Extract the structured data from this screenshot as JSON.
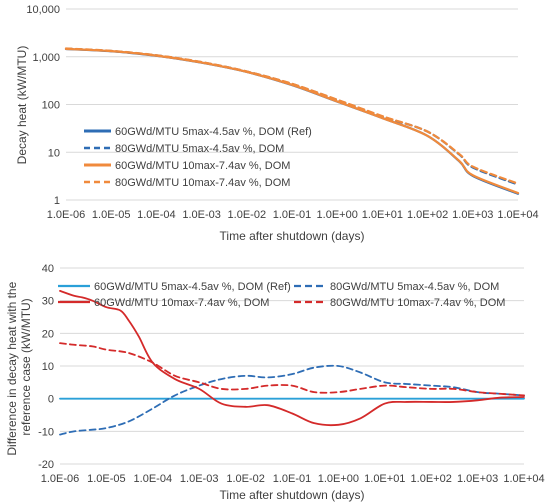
{
  "chart_data": [
    {
      "type": "line",
      "xlabel": "Time after shutdown (days)",
      "ylabel": "Decay heat (kW/MTU)",
      "xscale": "log",
      "yscale": "log",
      "xlim": [
        1e-06,
        10000.0
      ],
      "ylim": [
        1,
        10000
      ],
      "x_tick_labels": [
        "1.0E-06",
        "1.0E-05",
        "1.0E-04",
        "1.0E-03",
        "1.0E-02",
        "1.0E-01",
        "1.0E+00",
        "1.0E+01",
        "1.0E+02",
        "1.0E+03",
        "1.0E+04"
      ],
      "y_tick_labels": [
        "1",
        "10",
        "100",
        "1,000",
        "10,000"
      ],
      "grid": "horizontal",
      "legend_position": "bottom-left",
      "series": [
        {
          "name": "60GWd/MTU 5max-4.5av %, DOM (Ref)",
          "color": "#2e6db5",
          "dash": "solid",
          "x": [
            1e-06,
            1e-05,
            0.0001,
            0.001,
            0.01,
            0.1,
            1,
            10,
            100,
            500,
            1000,
            10000
          ],
          "y": [
            1450,
            1300,
            1050,
            750,
            480,
            255,
            115,
            52,
            22,
            6.5,
            3.2,
            1.35
          ]
        },
        {
          "name": "80GWd/MTU 5max-4.5av %, DOM",
          "color": "#2e6db5",
          "dash": "dashed",
          "x": [
            1e-06,
            1e-05,
            0.0001,
            0.001,
            0.01,
            0.1,
            1,
            10,
            100,
            500,
            1000,
            10000
          ],
          "y": [
            1480,
            1320,
            1070,
            770,
            490,
            270,
            125,
            56,
            27,
            9,
            4.8,
            2.1
          ]
        },
        {
          "name": "60GWd/MTU 10max-7.4av %, DOM",
          "color": "#f08a3c",
          "dash": "solid",
          "x": [
            1e-06,
            1e-05,
            0.0001,
            0.001,
            0.01,
            0.1,
            1,
            10,
            100,
            500,
            1000,
            10000
          ],
          "y": [
            1460,
            1310,
            1055,
            755,
            482,
            258,
            116,
            52,
            22,
            6.6,
            3.3,
            1.4
          ]
        },
        {
          "name": "80GWd/MTU 10max-7.4av %, DOM",
          "color": "#f08a3c",
          "dash": "dashed",
          "x": [
            1e-06,
            1e-05,
            0.0001,
            0.001,
            0.01,
            0.1,
            1,
            10,
            100,
            500,
            1000,
            10000
          ],
          "y": [
            1490,
            1330,
            1075,
            775,
            492,
            272,
            126,
            57,
            27,
            9.2,
            5,
            2.2
          ]
        }
      ]
    },
    {
      "type": "line",
      "xlabel": "Time after shutdown (days)",
      "ylabel": "Difference in decay heat with the reference case (kW/MTU)",
      "xscale": "log",
      "xlim": [
        1e-06,
        10000.0
      ],
      "ylim": [
        -20,
        40
      ],
      "x_tick_labels": [
        "1.0E-06",
        "1.0E-05",
        "1.0E-04",
        "1.0E-03",
        "1.0E-02",
        "1.0E-01",
        "1.0E+00",
        "1.0E+01",
        "1.0E+02",
        "1.0E+03",
        "1.0E+04"
      ],
      "y_tick_labels": [
        "-20",
        "-10",
        "0",
        "10",
        "20",
        "30",
        "40"
      ],
      "grid": "horizontal",
      "legend_position": "top",
      "series": [
        {
          "name": "60GWd/MTU 5max-4.5av %, DOM (Ref)",
          "color": "#2aa0d8",
          "dash": "solid",
          "x": [
            1e-06,
            10000.0
          ],
          "y": [
            0,
            0
          ]
        },
        {
          "name": "80GWd/MTU 5max-4.5av %, DOM",
          "color": "#2e6db5",
          "dash": "dashed",
          "x": [
            1e-06,
            2e-06,
            5e-06,
            1e-05,
            3e-05,
            0.0001,
            0.0003,
            0.001,
            0.003,
            0.01,
            0.03,
            0.1,
            0.3,
            1,
            3,
            10,
            30,
            100,
            300,
            1000,
            3000,
            10000
          ],
          "y": [
            -11,
            -10,
            -9.5,
            -9,
            -7,
            -3,
            1,
            4,
            6,
            7,
            6.5,
            7.5,
            9.5,
            10,
            8,
            5,
            4.5,
            4,
            3.5,
            2,
            1.5,
            1
          ]
        },
        {
          "name": "60GWd/MTU 10max-7.4av %, DOM",
          "color": "#d42a2a",
          "dash": "solid",
          "x": [
            1e-06,
            2e-06,
            3e-06,
            5e-06,
            1e-05,
            2e-05,
            3e-05,
            5e-05,
            0.0001,
            0.0003,
            0.001,
            0.003,
            0.01,
            0.03,
            0.1,
            0.3,
            1,
            3,
            10,
            30,
            100,
            300,
            1000,
            3000,
            10000
          ],
          "y": [
            33,
            31.5,
            31,
            30,
            28,
            27,
            24,
            19,
            11,
            6,
            3,
            -1.5,
            -2.5,
            -2,
            -4.5,
            -7.5,
            -8,
            -6,
            -1.5,
            -1,
            -1,
            -1,
            -0.5,
            0.3,
            0.5
          ]
        },
        {
          "name": "80GWd/MTU 10max-7.4av %, DOM",
          "color": "#d42a2a",
          "dash": "dashed",
          "x": [
            1e-06,
            2e-06,
            5e-06,
            1e-05,
            3e-05,
            0.0001,
            0.0003,
            0.001,
            0.003,
            0.01,
            0.03,
            0.1,
            0.3,
            1,
            3,
            10,
            30,
            100,
            300,
            1000,
            3000,
            10000
          ],
          "y": [
            17,
            16.5,
            16,
            15,
            14,
            11,
            7,
            5,
            3,
            3,
            4,
            4,
            2,
            2,
            3,
            4,
            3.5,
            3,
            3,
            2,
            1.5,
            1
          ]
        }
      ]
    }
  ]
}
